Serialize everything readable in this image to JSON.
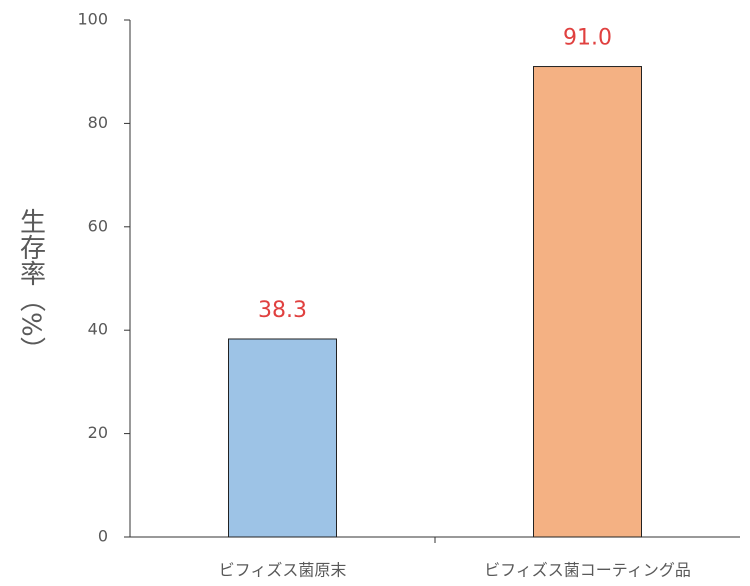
{
  "chart_data": {
    "type": "bar",
    "y_label": "生存率（%）",
    "categories": [
      "ビフィズス菌原末",
      "ビフィズス菌コーティング品"
    ],
    "values": [
      38.3,
      91.0
    ],
    "value_labels": [
      "38.3",
      "91.0"
    ],
    "colors": [
      "#9dc3e6",
      "#f4b183"
    ],
    "value_label_color": "#e0403f",
    "ylim": [
      0,
      100
    ],
    "yticks": [
      0,
      20,
      40,
      60,
      80,
      100
    ],
    "grid": false
  }
}
